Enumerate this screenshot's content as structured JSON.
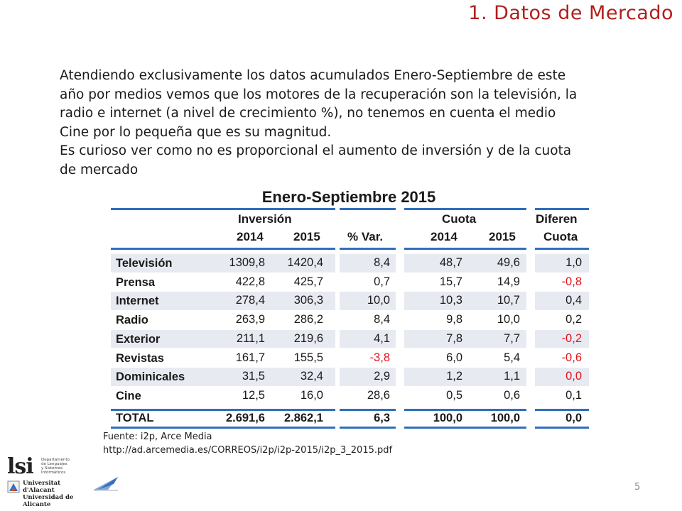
{
  "slide": {
    "title": "1. Datos de Mercado",
    "paragraphs": [
      "Atendiendo exclusivamente los datos acumulados Enero-Septiembre de este año por medios vemos que los motores de la recuperación son la televisión, la radio e internet (a nivel de crecimiento %), no tenemos en cuenta el medio Cine por lo pequeña que es su magnitud.",
      "Es curioso ver como no es proporcional el aumento de inversión y de la cuota de mercado"
    ],
    "page_number": "5"
  },
  "table": {
    "title": "Enero-Septiembre 2015",
    "group_headers": {
      "inversion": "Inversión",
      "cuota": "Cuota",
      "diferencia": "Diferen"
    },
    "column_headers": [
      "2014",
      "2015",
      "% Var.",
      "2014",
      "2015",
      "Cuota"
    ],
    "rows": [
      {
        "medio": "Televisión",
        "inv2014": "1309,8",
        "inv2015": "1420,4",
        "var": "8,4",
        "cuota2014": "48,7",
        "cuota2015": "49,6",
        "dif": "1,0"
      },
      {
        "medio": "Prensa",
        "inv2014": "422,8",
        "inv2015": "425,7",
        "var": "0,7",
        "cuota2014": "15,7",
        "cuota2015": "14,9",
        "dif": "-0,8"
      },
      {
        "medio": "Internet",
        "inv2014": "278,4",
        "inv2015": "306,3",
        "var": "10,0",
        "cuota2014": "10,3",
        "cuota2015": "10,7",
        "dif": "0,4"
      },
      {
        "medio": "Radio",
        "inv2014": "263,9",
        "inv2015": "286,2",
        "var": "8,4",
        "cuota2014": "9,8",
        "cuota2015": "10,0",
        "dif": "0,2"
      },
      {
        "medio": "Exterior",
        "inv2014": "211,1",
        "inv2015": "219,6",
        "var": "4,1",
        "cuota2014": "7,8",
        "cuota2015": "7,7",
        "dif": "-0,2"
      },
      {
        "medio": "Revistas",
        "inv2014": "161,7",
        "inv2015": "155,5",
        "var": "-3,8",
        "cuota2014": "6,0",
        "cuota2015": "5,4",
        "dif": "-0,6"
      },
      {
        "medio": "Dominicales",
        "inv2014": "31,5",
        "inv2015": "32,4",
        "var": "2,9",
        "cuota2014": "1,2",
        "cuota2015": "1,1",
        "dif": "0,0"
      },
      {
        "medio": "Cine",
        "inv2014": "12,5",
        "inv2015": "16,0",
        "var": "28,6",
        "cuota2014": "0,5",
        "cuota2015": "0,6",
        "dif": "0,1"
      }
    ],
    "total": {
      "medio": "TOTAL",
      "inv2014": "2.691,6",
      "inv2015": "2.862,1",
      "var": "6,3",
      "cuota2014": "100,0",
      "cuota2015": "100,0",
      "dif": "0,0"
    },
    "colors": {
      "rule": "#2e6fbf",
      "band": "#e7ebf1",
      "negative": "#e3141b"
    }
  },
  "source": {
    "label": "Fuente: i2p, Arce Media",
    "url": "http://ad.arcemedia.es/CORREOS/i2p/i2p-2015/i2p_3_2015.pdf"
  },
  "logos": {
    "lsi": "lsi",
    "lsi_sub": "Departamento de Lenguajes y Sistemas Informáticos",
    "ua_line1": "Universitat d'Alacant",
    "ua_line2": "Universidad de Alicante"
  }
}
